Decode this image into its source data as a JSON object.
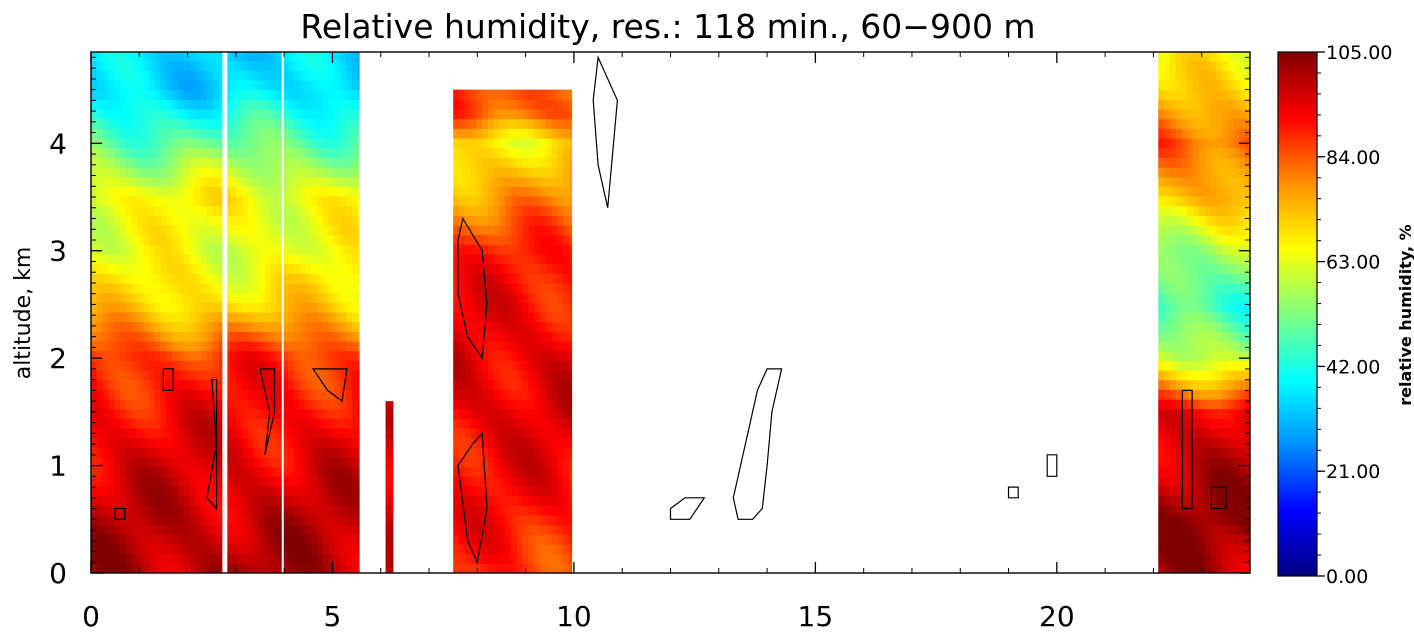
{
  "chart_data": {
    "type": "heatmap",
    "title": "Relative humidity, res.: 118 min.,  60−900 m",
    "xlabel": "",
    "ylabel": "altitude, km",
    "xlim": [
      0,
      24
    ],
    "ylim": [
      0,
      4.85
    ],
    "x_ticks": [
      "0",
      "5",
      "10",
      "15",
      "20"
    ],
    "y_ticks": [
      "0",
      "1",
      "2",
      "3",
      "4"
    ],
    "grid": false,
    "colorbar": {
      "label": "relative humidity, %",
      "range": [
        0,
        105
      ],
      "ticks": [
        "0.00",
        "21.00",
        "42.00",
        "63.00",
        "84.00",
        "105.00"
      ],
      "colors": [
        "#000080",
        "#0000ff",
        "#0090ff",
        "#00ffff",
        "#80ff80",
        "#ffff00",
        "#ff9000",
        "#ff0000",
        "#800000"
      ]
    },
    "data_blocks": [
      {
        "x": [
          0.0,
          5.55
        ],
        "y": [
          0.0,
          4.85
        ]
      },
      {
        "x": [
          6.1,
          6.25
        ],
        "y": [
          0.0,
          1.6
        ]
      },
      {
        "x": [
          7.5,
          9.95
        ],
        "y": [
          0.0,
          4.5
        ]
      },
      {
        "x": [
          22.1,
          24.0
        ],
        "y": [
          0.0,
          4.85
        ]
      }
    ],
    "profiles": [
      {
        "altitude_km": [
          0.0,
          0.5,
          1.0,
          1.5,
          2.0,
          2.5,
          3.0,
          3.5,
          4.0,
          4.5,
          4.85
        ],
        "rh_percent": [
          100,
          98,
          95,
          92,
          88,
          70,
          63,
          66,
          50,
          35,
          35
        ]
      },
      {
        "altitude_km": [
          0.0,
          0.5,
          1.0,
          1.5,
          2.0,
          2.5,
          3.0,
          3.5,
          4.0,
          4.3
        ],
        "rh_percent": [
          88,
          90,
          92,
          95,
          95,
          92,
          88,
          78,
          68,
          85
        ]
      },
      {
        "altitude_km": [
          0.0,
          0.5,
          1.0,
          1.5,
          2.0,
          2.5,
          3.0,
          3.5,
          4.0,
          4.5,
          4.85
        ],
        "rh_percent": [
          100,
          102,
          98,
          95,
          60,
          44,
          55,
          75,
          84,
          70,
          65
        ]
      }
    ],
    "contour_level_note": ""
  }
}
